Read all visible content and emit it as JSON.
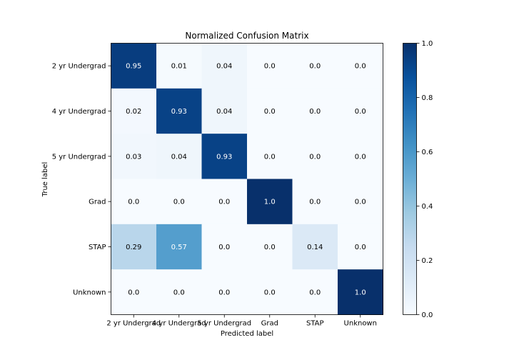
{
  "chart_data": {
    "type": "heatmap",
    "title": "Normalized Confusion Matrix",
    "xlabel": "Predicted label",
    "ylabel": "True label",
    "x_categories": [
      "2 yr Undergrad",
      "4 yr Undergrad",
      "5 yr Undergrad",
      "Grad",
      "STAP",
      "Unknown"
    ],
    "y_categories": [
      "2 yr Undergrad",
      "4 yr Undergrad",
      "5 yr Undergrad",
      "Grad",
      "STAP",
      "Unknown"
    ],
    "values": [
      [
        0.95,
        0.01,
        0.04,
        0.0,
        0.0,
        0.0
      ],
      [
        0.02,
        0.93,
        0.04,
        0.0,
        0.0,
        0.0
      ],
      [
        0.03,
        0.04,
        0.93,
        0.0,
        0.0,
        0.0
      ],
      [
        0.0,
        0.0,
        0.0,
        1.0,
        0.0,
        0.0
      ],
      [
        0.29,
        0.57,
        0.0,
        0.0,
        0.14,
        0.0
      ],
      [
        0.0,
        0.0,
        0.0,
        0.0,
        0.0,
        1.0
      ]
    ],
    "value_labels": [
      [
        "0.95",
        "0.01",
        "0.04",
        "0.0",
        "0.0",
        "0.0"
      ],
      [
        "0.02",
        "0.93",
        "0.04",
        "0.0",
        "0.0",
        "0.0"
      ],
      [
        "0.03",
        "0.04",
        "0.93",
        "0.0",
        "0.0",
        "0.0"
      ],
      [
        "0.0",
        "0.0",
        "0.0",
        "1.0",
        "0.0",
        "0.0"
      ],
      [
        "0.29",
        "0.57",
        "0.0",
        "0.0",
        "0.14",
        "0.0"
      ],
      [
        "0.0",
        "0.0",
        "0.0",
        "0.0",
        "0.0",
        "1.0"
      ]
    ],
    "colormap": "Blues",
    "colorbar": {
      "range": [
        0.0,
        1.0
      ],
      "ticks": [
        "0.0",
        "0.2",
        "0.4",
        "0.6",
        "0.8",
        "1.0"
      ]
    },
    "text_color_light": "#ffffff",
    "text_color_dark": "#000000"
  }
}
